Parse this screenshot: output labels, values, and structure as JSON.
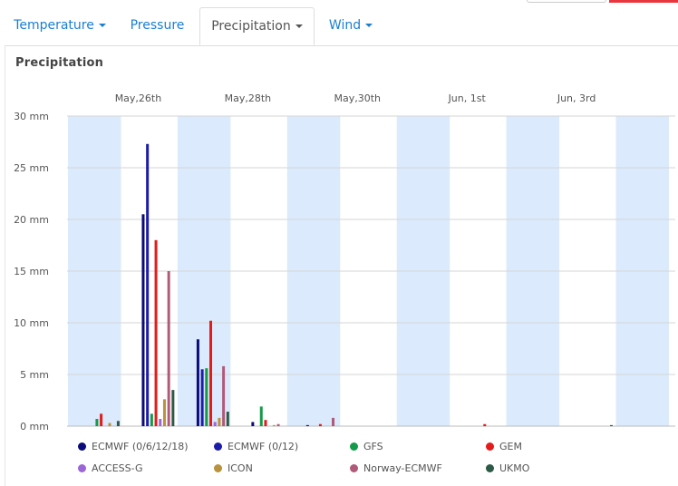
{
  "tabs": [
    {
      "label": "Temperature",
      "caret": true
    },
    {
      "label": "Pressure",
      "caret": false
    },
    {
      "label": "Precipitation",
      "caret": true,
      "active": true
    },
    {
      "label": "Wind",
      "caret": true
    }
  ],
  "panel_title": "Precipitation",
  "colors": {
    "tab_link": "#1a7fd4",
    "shade": "#dbeafc",
    "grid": "#d6d6d6"
  },
  "chart_data": {
    "type": "bar",
    "title": "Precipitation",
    "y_unit": "mm",
    "ylim": [
      0,
      30
    ],
    "y_ticks": [
      "0 mm",
      "5 mm",
      "10 mm",
      "15 mm",
      "20 mm",
      "25 mm",
      "30 mm"
    ],
    "x_tick_labels": [
      "May,26th",
      "May,28th",
      "May,30th",
      "Jun, 1st",
      "Jun, 3rd"
    ],
    "days": [
      "May 25",
      "May 26",
      "May 27",
      "May 28",
      "May 29",
      "May 30",
      "May 31",
      "Jun 1",
      "Jun 2",
      "Jun 3",
      "Jun 4"
    ],
    "shaded_days": [
      "May 25",
      "May 27",
      "May 29",
      "May 31",
      "Jun 2",
      "Jun 4"
    ],
    "grid": true,
    "legend_position": "bottom",
    "series": [
      {
        "name": "ECMWF (0/6/12/18)",
        "color": "#0b0b7a",
        "values": [
          0,
          20.5,
          8.4,
          0.4,
          0.1,
          0,
          0,
          0,
          0,
          0,
          0
        ]
      },
      {
        "name": "ECMWF (0/12)",
        "color": "#1c1ca8",
        "values": [
          0,
          27.3,
          5.5,
          0,
          0,
          0,
          0,
          0,
          0,
          0,
          0
        ]
      },
      {
        "name": "GFS",
        "color": "#149a4a",
        "values": [
          0.7,
          1.2,
          5.6,
          1.9,
          0,
          0,
          0,
          0,
          0,
          0,
          0
        ]
      },
      {
        "name": "GEM",
        "color": "#e41b1b",
        "values": [
          1.2,
          18.0,
          10.2,
          0.6,
          0.2,
          0,
          0,
          0.2,
          0,
          0,
          0
        ]
      },
      {
        "name": "ACCESS-G",
        "color": "#9b66d6",
        "values": [
          0,
          0.7,
          0.4,
          0,
          0,
          0,
          0,
          0,
          0,
          0,
          0
        ]
      },
      {
        "name": "ICON",
        "color": "#b8923c",
        "values": [
          0.3,
          2.6,
          0.8,
          0.1,
          0,
          0,
          0,
          0,
          0,
          0,
          0
        ]
      },
      {
        "name": "Norway-ECMWF",
        "color": "#b05a7a",
        "values": [
          0,
          15.0,
          5.8,
          0.2,
          0.8,
          0,
          0,
          0,
          0,
          0,
          0
        ]
      },
      {
        "name": "UKMO",
        "color": "#2d5a46",
        "values": [
          0.5,
          3.5,
          1.4,
          0,
          0,
          0,
          0,
          0,
          0,
          0.1,
          0
        ]
      }
    ]
  }
}
